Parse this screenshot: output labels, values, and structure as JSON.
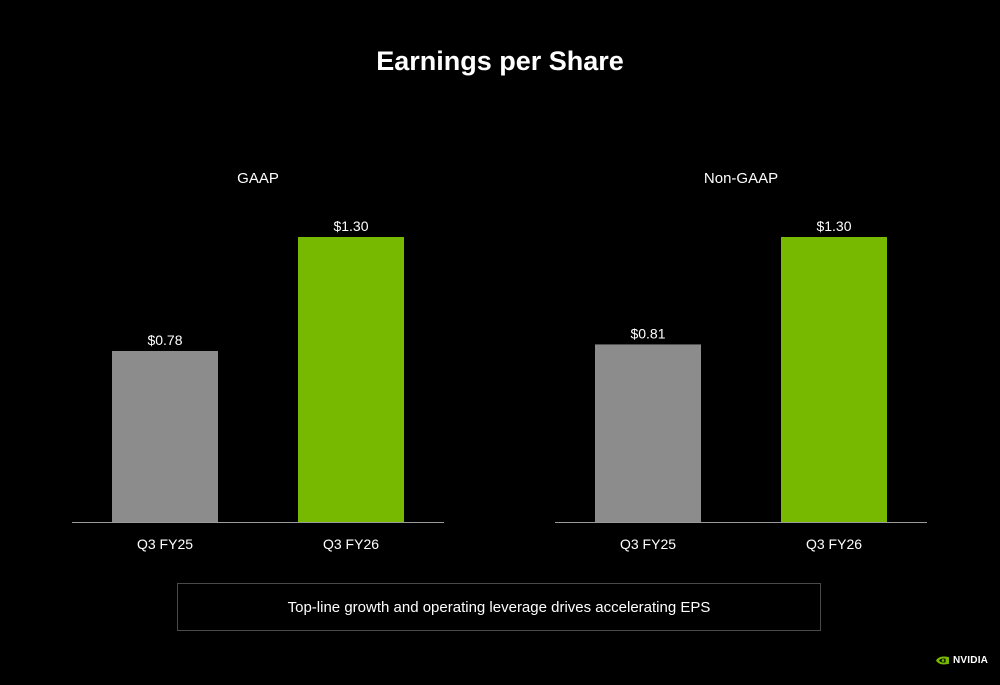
{
  "title": "Earnings per Share",
  "chart_data": [
    {
      "type": "bar",
      "title": "GAAP",
      "categories": [
        "Q3 FY25",
        "Q3 FY26"
      ],
      "values": [
        0.78,
        1.3
      ],
      "value_labels": [
        "$0.78",
        "$1.30"
      ],
      "bar_colors": [
        "#8c8c8c",
        "#76b900"
      ],
      "ylim": [
        0,
        1.3
      ],
      "grid": false
    },
    {
      "type": "bar",
      "title": "Non-GAAP",
      "categories": [
        "Q3 FY25",
        "Q3 FY26"
      ],
      "values": [
        0.81,
        1.3
      ],
      "value_labels": [
        "$0.81",
        "$1.30"
      ],
      "bar_colors": [
        "#8c8c8c",
        "#76b900"
      ],
      "ylim": [
        0,
        1.3
      ],
      "grid": false
    }
  ],
  "callout": "Top-line growth and operating leverage drives accelerating EPS",
  "logo": {
    "text": "NVIDIA",
    "icon": "nvidia-eye-icon",
    "color": "#76b900"
  }
}
